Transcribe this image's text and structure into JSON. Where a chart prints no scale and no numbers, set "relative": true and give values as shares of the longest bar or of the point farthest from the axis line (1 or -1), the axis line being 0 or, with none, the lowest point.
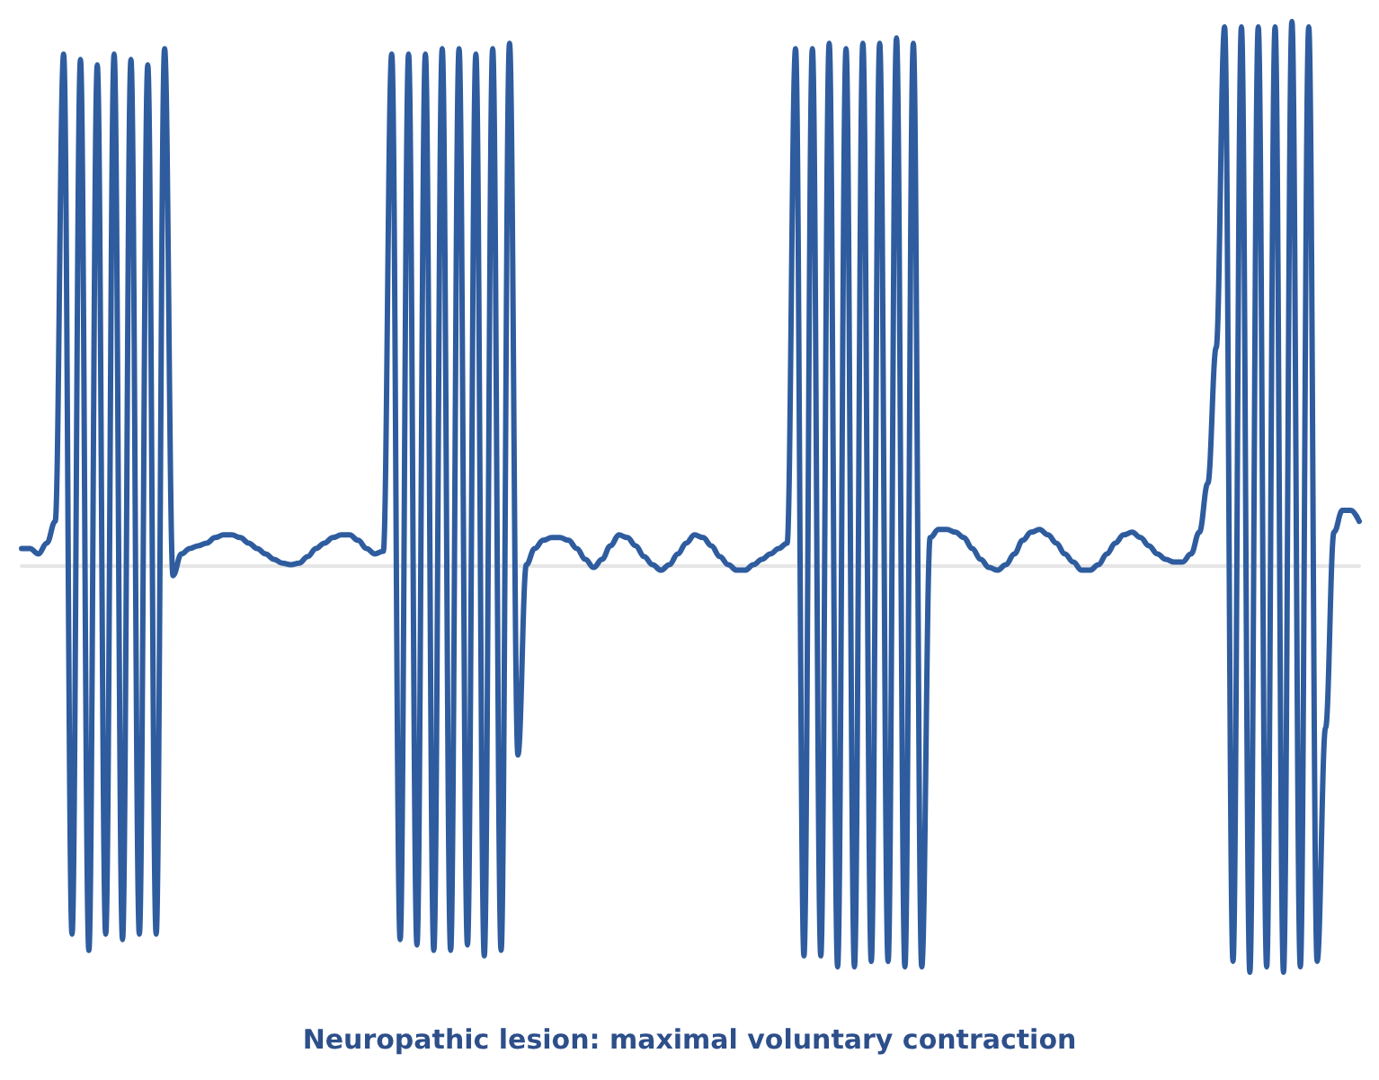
{
  "chart_data": {
    "type": "line",
    "relative": true,
    "title": "Neuropathic lesion: maximal voluntary contraction",
    "categories": [
      null,
      null,
      null,
      null,
      null,
      null,
      null,
      null,
      null,
      null,
      null,
      null,
      null,
      null,
      null,
      null,
      null,
      null,
      null,
      null,
      null,
      null,
      null,
      null,
      null,
      null,
      null,
      null,
      null,
      null,
      null,
      null,
      null,
      null,
      null,
      null,
      null,
      null,
      null,
      null,
      null,
      null,
      null,
      null,
      null,
      null,
      null,
      null,
      null,
      null,
      null,
      null,
      null,
      null,
      null,
      null,
      null,
      null,
      null,
      null,
      null,
      null,
      null,
      null,
      null,
      null,
      null,
      null,
      null,
      null,
      null,
      null,
      null,
      null,
      null,
      null,
      null,
      null,
      null,
      null,
      null,
      null,
      null,
      null,
      null,
      null,
      null,
      null,
      null,
      null,
      null,
      null,
      null,
      null,
      null,
      null,
      null,
      null,
      null,
      null,
      null,
      null,
      null,
      null,
      null,
      null,
      null,
      null,
      null,
      null,
      null,
      null,
      null,
      null,
      null,
      null,
      null,
      null,
      null,
      null,
      null,
      null,
      null,
      null,
      null,
      null,
      null,
      null,
      null,
      null,
      null,
      null,
      null,
      null,
      null,
      null,
      null,
      null,
      null,
      null,
      null,
      null,
      null,
      null,
      null,
      null,
      null,
      null,
      null,
      null,
      null,
      null,
      null,
      null,
      null,
      null,
      null,
      null,
      null,
      null
    ],
    "series": [
      {
        "color": "#2e5c9e",
        "values": [
          0.03,
          0.03,
          0.02,
          0.04,
          0.08,
          0.94,
          -0.68,
          0.93,
          -0.71,
          0.92,
          -0.68,
          0.94,
          -0.69,
          0.93,
          -0.68,
          0.92,
          -0.68,
          0.95,
          -0.02,
          0.02,
          0.03,
          0.035,
          0.04,
          0.05,
          0.055,
          0.055,
          0.05,
          0.04,
          0.03,
          0.02,
          0.01,
          0.003,
          0,
          0.003,
          0.015,
          0.03,
          0.04,
          0.05,
          0.055,
          0.055,
          0.045,
          0.03,
          0.02,
          0.025,
          0.94,
          -0.69,
          0.94,
          -0.7,
          0.94,
          -0.71,
          0.95,
          -0.71,
          0.95,
          -0.7,
          0.94,
          -0.72,
          0.95,
          -0.71,
          0.96,
          -0.35,
          0,
          0.03,
          0.045,
          0.05,
          0.05,
          0.045,
          0.03,
          0.01,
          -0.005,
          0.01,
          0.035,
          0.055,
          0.05,
          0.035,
          0.015,
          0,
          -0.01,
          0,
          0.02,
          0.04,
          0.055,
          0.05,
          0.035,
          0.015,
          0,
          -0.01,
          -0.01,
          0,
          0.01,
          0.02,
          0.03,
          0.04,
          0.95,
          -0.72,
          0.95,
          -0.72,
          0.96,
          -0.74,
          0.95,
          -0.74,
          0.96,
          -0.73,
          0.96,
          -0.73,
          0.97,
          -0.74,
          0.96,
          -0.74,
          0.05,
          0.065,
          0.065,
          0.06,
          0.05,
          0.03,
          0.01,
          -0.005,
          -0.01,
          0,
          0.02,
          0.045,
          0.06,
          0.065,
          0.055,
          0.04,
          0.02,
          0.005,
          -0.01,
          -0.01,
          0,
          0.02,
          0.04,
          0.055,
          0.06,
          0.05,
          0.035,
          0.02,
          0.01,
          0.005,
          0.005,
          0.02,
          0.06,
          0.15,
          0.4,
          0.99,
          -0.73,
          0.99,
          -0.75,
          0.99,
          -0.74,
          0.99,
          -0.75,
          1,
          -0.74,
          0.99,
          -0.73,
          -0.3,
          0.06,
          0.1,
          0.1,
          0.08
        ]
      }
    ],
    "marker": "none"
  }
}
